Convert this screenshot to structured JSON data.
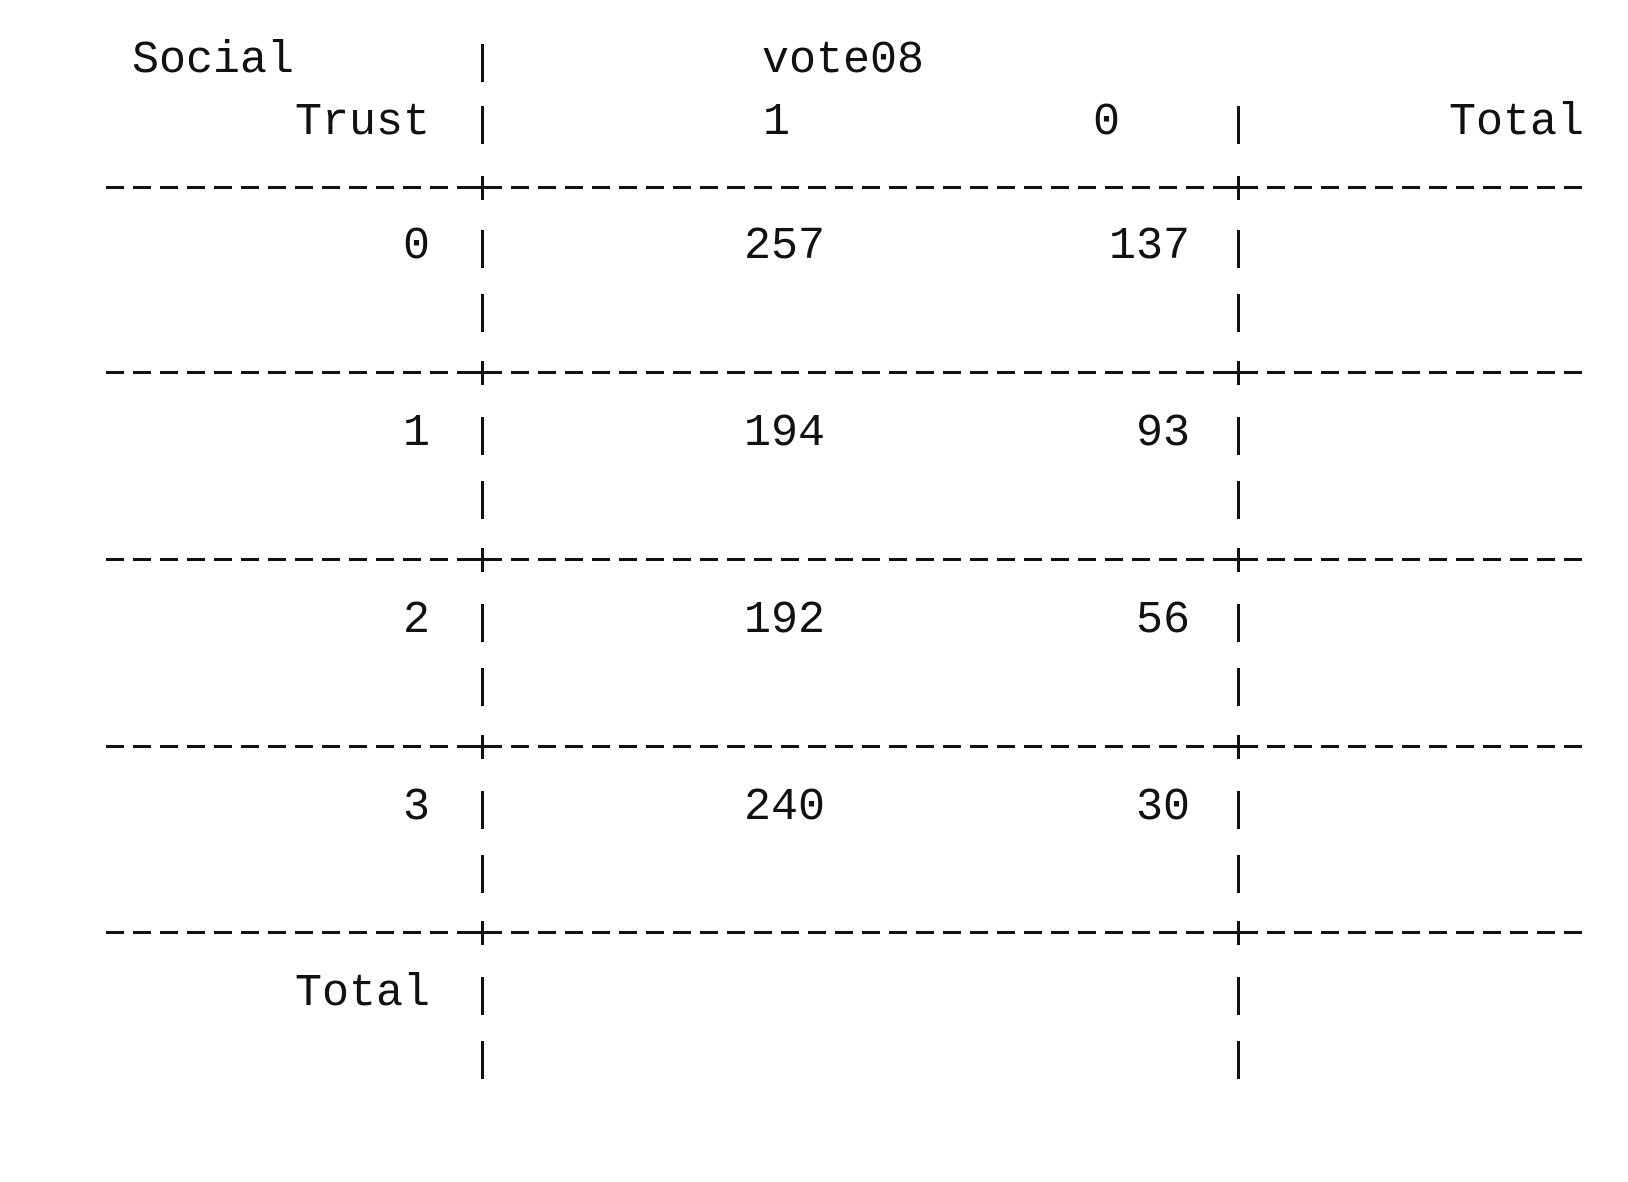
{
  "table": {
    "row_var_line1": "Social",
    "row_var_line2": "Trust",
    "col_var": "vote08",
    "col_headers": [
      "1",
      "0"
    ],
    "total_col_header": "Total",
    "rows": [
      {
        "label": "0",
        "cells": [
          "257",
          "137"
        ]
      },
      {
        "label": "1",
        "cells": [
          "194",
          "93"
        ]
      },
      {
        "label": "2",
        "cells": [
          "192",
          "56"
        ]
      },
      {
        "label": "3",
        "cells": [
          "240",
          "30"
        ]
      }
    ],
    "total_row_label": "Total"
  }
}
